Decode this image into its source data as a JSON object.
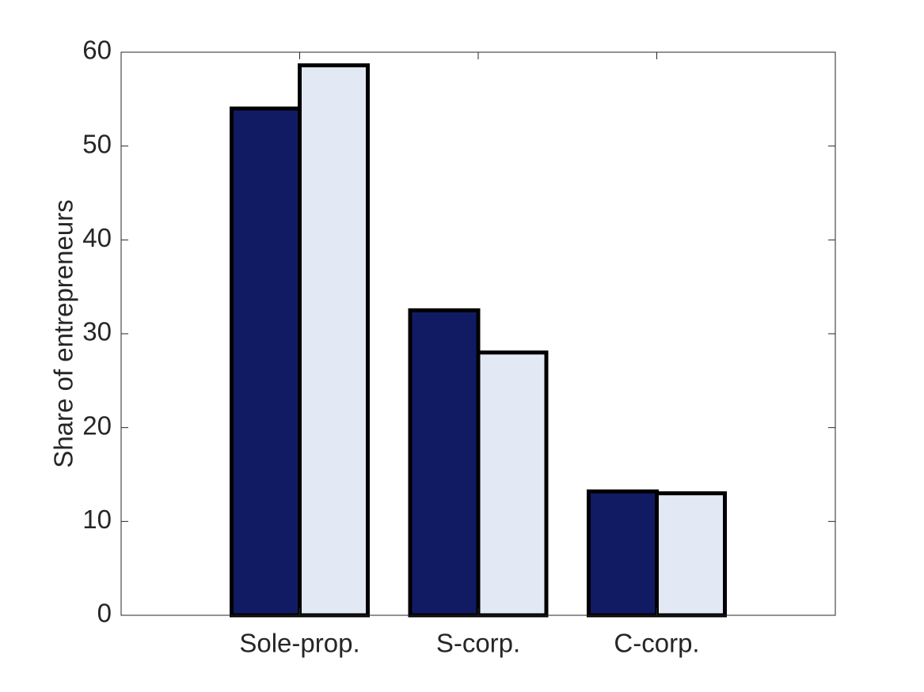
{
  "chart_data": {
    "type": "bar",
    "categories": [
      "Sole-prop.",
      "S-corp.",
      "C-corp."
    ],
    "series": [
      {
        "values": [
          54.0,
          32.5,
          13.2
        ],
        "color": "#111b64"
      },
      {
        "values": [
          58.6,
          28.0,
          13.0
        ],
        "color": "#e2e9f5"
      }
    ],
    "title": "",
    "xlabel": "",
    "ylabel": "Share of entrepreneurs",
    "ylim": [
      0,
      60
    ],
    "yticks": [
      0,
      10,
      20,
      30,
      40,
      50,
      60
    ],
    "grid": false,
    "legend": null
  }
}
